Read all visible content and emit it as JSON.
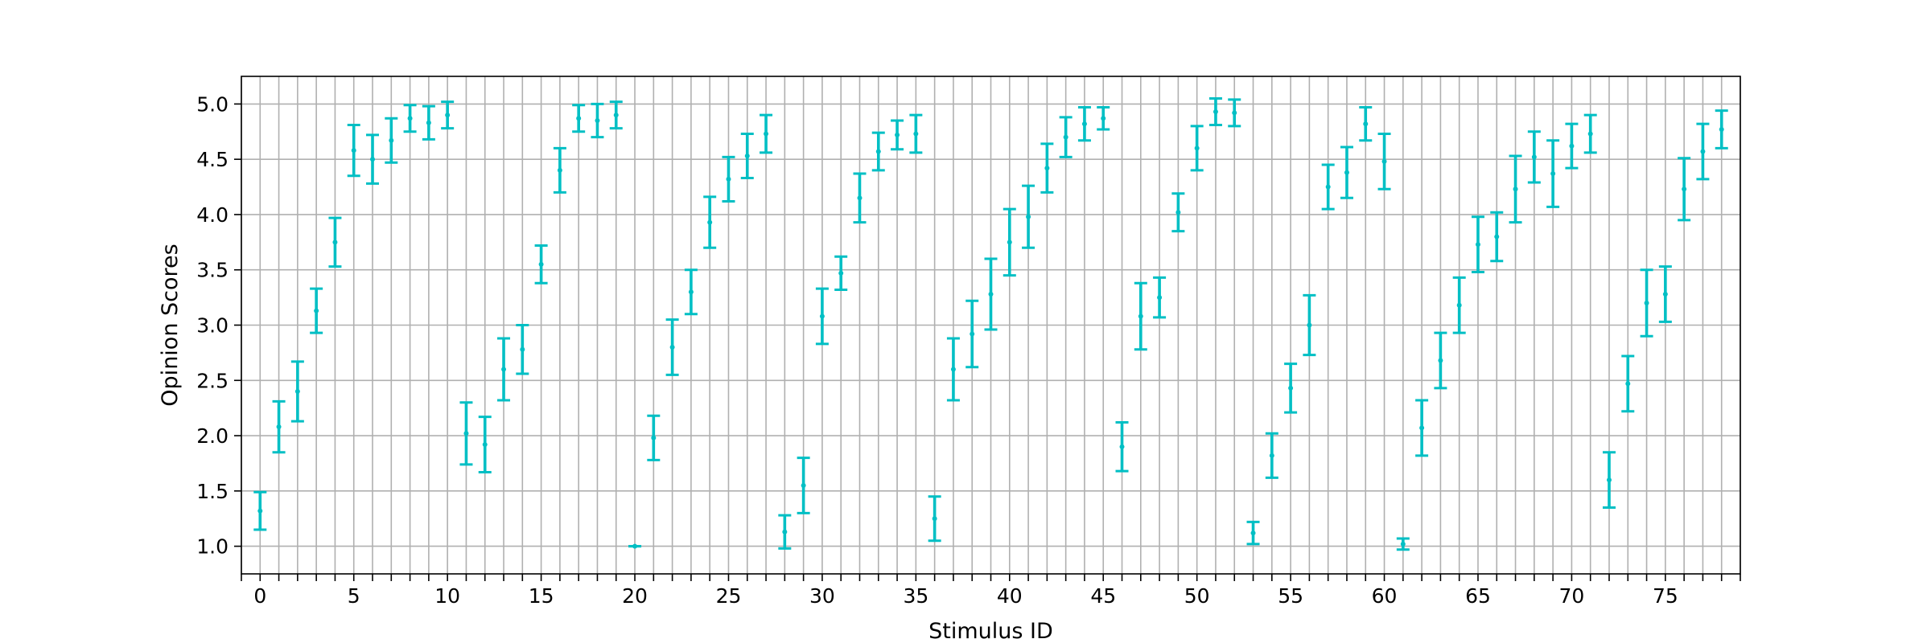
{
  "chart_data": {
    "type": "scatter",
    "subtype": "errorbar",
    "title": "",
    "xlabel": "Stimulus ID",
    "ylabel": "Opinion Scores",
    "xlim": [
      -1,
      79
    ],
    "ylim": [
      0.75,
      5.25
    ],
    "xticks_labeled": [
      0,
      5,
      10,
      15,
      20,
      25,
      30,
      35,
      40,
      45,
      50,
      55,
      60,
      65,
      70,
      75
    ],
    "xtick_labels": [
      "0",
      "5",
      "10",
      "15",
      "20",
      "25",
      "30",
      "35",
      "40",
      "45",
      "50",
      "55",
      "60",
      "65",
      "70",
      "75"
    ],
    "yticks": [
      1.0,
      1.5,
      2.0,
      2.5,
      3.0,
      3.5,
      4.0,
      4.5,
      5.0
    ],
    "ytick_labels": [
      "1.0",
      "1.5",
      "2.0",
      "2.5",
      "3.0",
      "3.5",
      "4.0",
      "4.5",
      "5.0"
    ],
    "grid": true,
    "grid_every_x": 1,
    "color": "#00bfc4",
    "series": [
      {
        "x": [
          0,
          1,
          2,
          3,
          4,
          5,
          6,
          7,
          8,
          9,
          10,
          11,
          12,
          13,
          14,
          15,
          16,
          17,
          18,
          19,
          20,
          21,
          22,
          23,
          24,
          25,
          26,
          27,
          28,
          29,
          30,
          31,
          32,
          33,
          34,
          35,
          36,
          37,
          38,
          39,
          40,
          41,
          42,
          43,
          44,
          45,
          46,
          47,
          48,
          49,
          50,
          51,
          52,
          53,
          54,
          55,
          56,
          57,
          58,
          59,
          60,
          61,
          62,
          63,
          64,
          65,
          66,
          67,
          68,
          69,
          70,
          71,
          72,
          73,
          74,
          75,
          76,
          77,
          78
        ],
        "y": [
          1.32,
          2.08,
          2.4,
          3.13,
          3.75,
          4.58,
          4.5,
          4.67,
          4.87,
          4.83,
          4.9,
          2.02,
          1.92,
          2.6,
          2.78,
          3.55,
          4.4,
          4.87,
          4.85,
          4.9,
          1.0,
          1.98,
          2.8,
          3.3,
          3.93,
          4.32,
          4.53,
          4.73,
          1.13,
          1.55,
          3.08,
          3.47,
          4.15,
          4.57,
          4.72,
          4.73,
          1.25,
          2.6,
          2.92,
          3.28,
          3.75,
          3.98,
          4.42,
          4.7,
          4.82,
          4.87,
          1.9,
          3.08,
          3.25,
          4.02,
          4.6,
          4.93,
          4.92,
          1.12,
          1.82,
          2.43,
          3.0,
          4.25,
          4.38,
          4.82,
          4.48,
          1.02,
          2.07,
          2.68,
          3.18,
          3.73,
          3.8,
          4.23,
          4.52,
          4.37,
          4.62,
          4.73,
          1.6,
          2.47,
          3.2,
          3.28,
          4.23,
          4.57,
          4.77
        ],
        "err": [
          0.17,
          0.23,
          0.27,
          0.2,
          0.22,
          0.23,
          0.22,
          0.2,
          0.12,
          0.15,
          0.12,
          0.28,
          0.25,
          0.28,
          0.22,
          0.17,
          0.2,
          0.12,
          0.15,
          0.12,
          0.0,
          0.2,
          0.25,
          0.2,
          0.23,
          0.2,
          0.2,
          0.17,
          0.15,
          0.25,
          0.25,
          0.15,
          0.22,
          0.17,
          0.13,
          0.17,
          0.2,
          0.28,
          0.3,
          0.32,
          0.3,
          0.28,
          0.22,
          0.18,
          0.15,
          0.1,
          0.22,
          0.3,
          0.18,
          0.17,
          0.2,
          0.12,
          0.12,
          0.1,
          0.2,
          0.22,
          0.27,
          0.2,
          0.23,
          0.15,
          0.25,
          0.05,
          0.25,
          0.25,
          0.25,
          0.25,
          0.22,
          0.3,
          0.23,
          0.3,
          0.2,
          0.17,
          0.25,
          0.25,
          0.3,
          0.25,
          0.28,
          0.25,
          0.17
        ]
      }
    ]
  }
}
